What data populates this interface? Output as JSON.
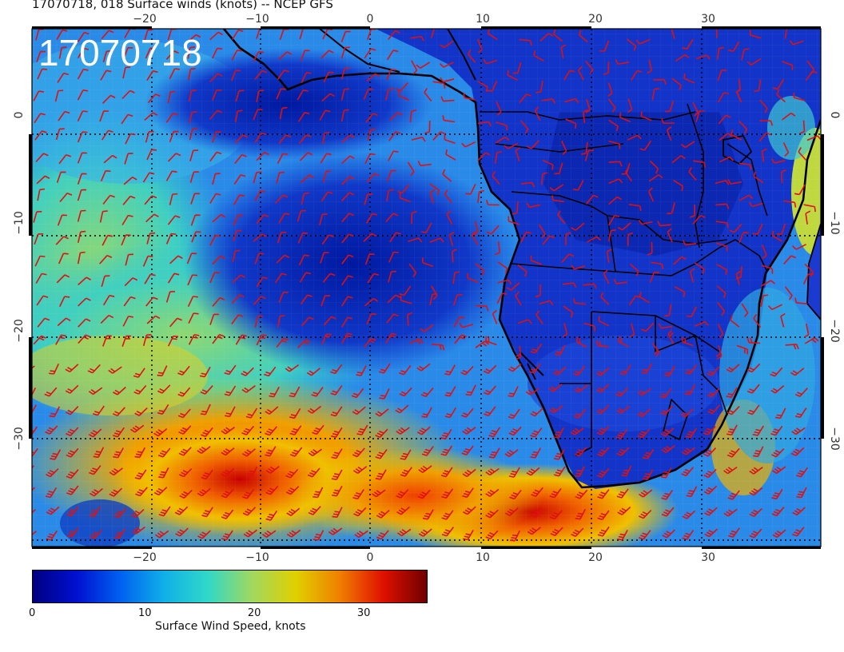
{
  "title": "17070718, 018 Surface winds (knots) -- NCEP GFS",
  "stamp": "17070718",
  "map": {
    "lon_range": [
      -30,
      40
    ],
    "lat_range": [
      -40,
      8
    ],
    "x_ticks": [
      "−20",
      "−10",
      "0",
      "10",
      "20",
      "30"
    ],
    "x_tick_values": [
      -20,
      -10,
      0,
      10,
      20,
      30
    ],
    "y_ticks": [
      "0",
      "−10",
      "−20",
      "−30"
    ],
    "y_tick_values": [
      0,
      -10,
      -20,
      -30
    ],
    "grid": "dotted",
    "barb_color": "#e01010",
    "coast_color": "#000000"
  },
  "colorbar": {
    "ticks": [
      "0",
      "10",
      "20",
      "30"
    ],
    "tick_values": [
      0,
      10,
      20,
      30
    ],
    "range": [
      0,
      36
    ],
    "label": "Surface Wind Speed, knots",
    "colors": [
      "#000080",
      "#0010d0",
      "#0060f0",
      "#10b0e8",
      "#30d8c8",
      "#a0d860",
      "#e0d000",
      "#f08000",
      "#e01000",
      "#700000"
    ]
  }
}
